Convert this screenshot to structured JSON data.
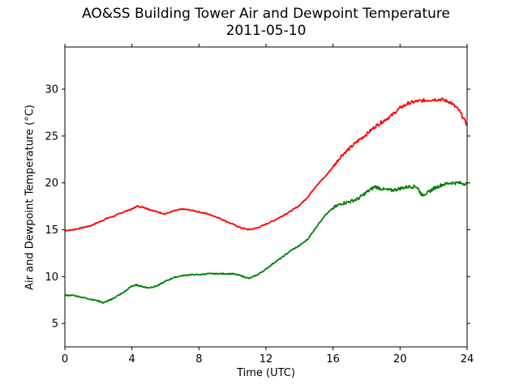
{
  "chart_data": {
    "type": "line",
    "title": "AO&SS Building Tower Air and Dewpoint Temperature",
    "subtitle": "2011-05-10",
    "xlabel": "Time (UTC)",
    "ylabel": "Air and Dewpoint Temperature (°C)",
    "xlim": [
      0,
      24
    ],
    "ylim": [
      2.5,
      34.5
    ],
    "xticks": [
      0,
      4,
      8,
      12,
      16,
      20,
      24
    ],
    "yticks": [
      5,
      10,
      15,
      20,
      25,
      30
    ],
    "grid": false,
    "legend": "none",
    "series": [
      {
        "color": "#ff0000",
        "x": [
          0,
          0.5,
          1,
          1.5,
          2,
          2.5,
          3,
          3.5,
          4,
          4.3,
          4.7,
          5,
          5.5,
          6,
          6.5,
          7,
          7.5,
          8,
          8.5,
          9,
          9.5,
          10,
          10.5,
          11,
          11.5,
          12,
          12.5,
          13,
          13.5,
          14,
          14.5,
          15,
          15.5,
          16,
          16.5,
          17,
          17.5,
          18,
          18.5,
          19,
          19.5,
          20,
          20.5,
          21,
          21.5,
          22,
          22.5,
          23,
          23.5,
          24
        ],
        "y": [
          14.9,
          15.0,
          15.2,
          15.4,
          15.8,
          16.2,
          16.5,
          16.9,
          17.2,
          17.5,
          17.4,
          17.2,
          16.9,
          16.7,
          17.0,
          17.2,
          17.1,
          16.9,
          16.7,
          16.4,
          16.0,
          15.6,
          15.2,
          15.0,
          15.2,
          15.6,
          16.0,
          16.5,
          17.0,
          17.6,
          18.5,
          19.7,
          20.6,
          21.7,
          22.9,
          23.7,
          24.5,
          25.2,
          26.0,
          26.6,
          27.2,
          28.0,
          28.5,
          28.7,
          28.8,
          28.9,
          28.9,
          28.6,
          27.8,
          26.2
        ]
      },
      {
        "color": "#008000",
        "x": [
          0,
          0.5,
          1,
          1.5,
          2,
          2.3,
          2.7,
          3,
          3.5,
          4,
          4.3,
          4.7,
          5,
          5.5,
          6,
          6.5,
          7,
          7.5,
          8,
          8.5,
          9,
          9.5,
          10,
          10.5,
          11,
          11.5,
          12,
          12.5,
          13,
          13.5,
          14,
          14.5,
          15,
          15.5,
          16,
          16.5,
          17,
          17.5,
          18,
          18.5,
          19,
          19.5,
          20,
          20.5,
          21,
          21.3,
          21.7,
          22,
          22.5,
          23,
          23.5,
          24
        ],
        "y": [
          8.0,
          8.0,
          7.8,
          7.6,
          7.4,
          7.2,
          7.5,
          7.8,
          8.3,
          9.0,
          9.1,
          8.9,
          8.8,
          9.0,
          9.5,
          9.9,
          10.1,
          10.2,
          10.2,
          10.3,
          10.3,
          10.3,
          10.3,
          10.1,
          9.8,
          10.2,
          10.8,
          11.5,
          12.1,
          12.8,
          13.3,
          14.0,
          15.3,
          16.5,
          17.3,
          17.8,
          18.0,
          18.3,
          19.0,
          19.6,
          19.3,
          19.2,
          19.4,
          19.6,
          19.6,
          18.7,
          19.0,
          19.4,
          19.8,
          20.0,
          20.0,
          19.9
        ]
      }
    ]
  }
}
